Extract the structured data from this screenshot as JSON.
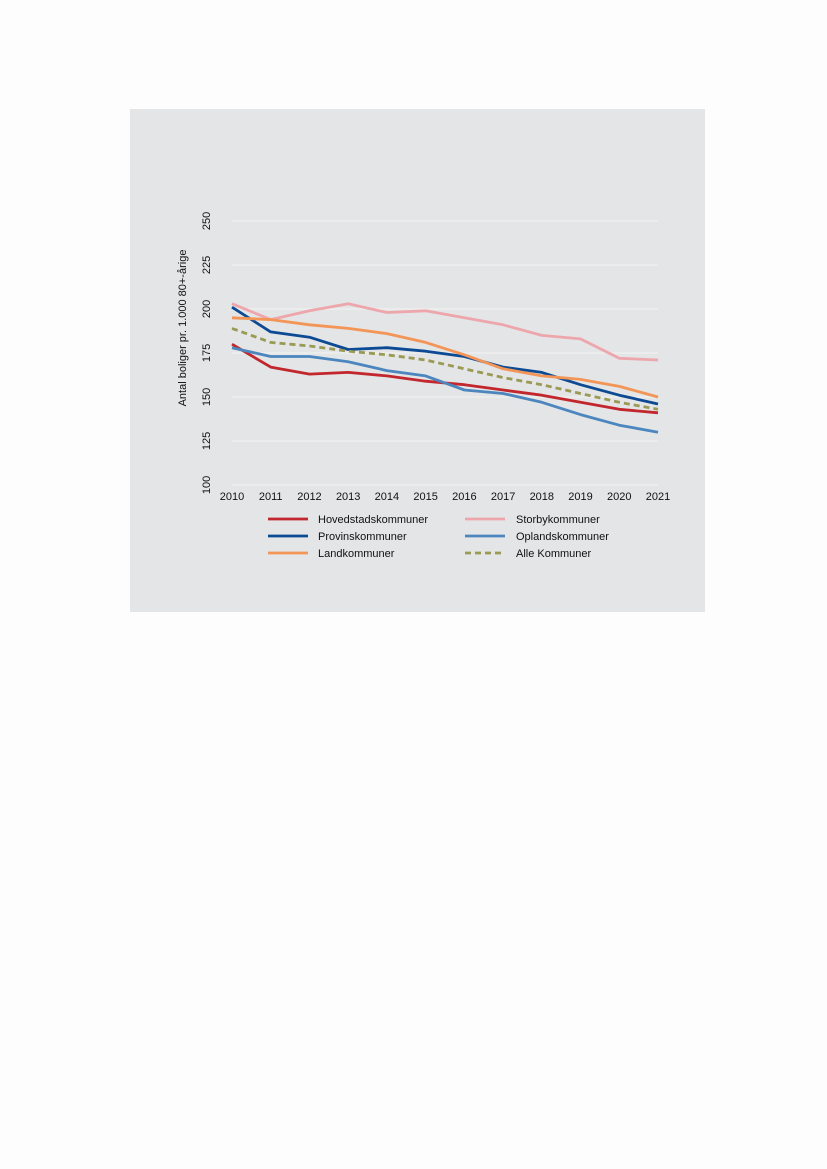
{
  "chart_data": {
    "type": "line",
    "title": "",
    "xlabel": "",
    "ylabel": "Antal boliger pr. 1.000 80+-årige",
    "x": [
      "2010",
      "2011",
      "2012",
      "2013",
      "2014",
      "2015",
      "2016",
      "2017",
      "2018",
      "2019",
      "2020",
      "2021"
    ],
    "ylim": [
      100,
      250
    ],
    "yticks": [
      100,
      125,
      150,
      175,
      200,
      225,
      250
    ],
    "grid": "horizontal",
    "legend_position": "bottom",
    "series": [
      {
        "name": "Hovedstadskommuner",
        "color": "#c1272d",
        "dash": false,
        "values": [
          180,
          167,
          163,
          164,
          162,
          159,
          157,
          154,
          151,
          147,
          143,
          141
        ]
      },
      {
        "name": "Storbykommuner",
        "color": "#eda6ac",
        "dash": false,
        "values": [
          203,
          194,
          199,
          203,
          198,
          199,
          195,
          191,
          185,
          183,
          172,
          171
        ]
      },
      {
        "name": "Provinskommuner",
        "color": "#0d4a94",
        "dash": false,
        "values": [
          201,
          187,
          184,
          177,
          178,
          176,
          173,
          167,
          164,
          157,
          151,
          146
        ]
      },
      {
        "name": "Oplandskommuner",
        "color": "#4c86bf",
        "dash": false,
        "values": [
          178,
          173,
          173,
          170,
          165,
          162,
          154,
          152,
          147,
          140,
          134,
          130
        ]
      },
      {
        "name": "Landkommuner",
        "color": "#f29557",
        "dash": false,
        "values": [
          195,
          194,
          191,
          189,
          186,
          181,
          174,
          166,
          162,
          160,
          156,
          150
        ]
      },
      {
        "name": "Alle Kommuner",
        "color": "#9a9a55",
        "dash": true,
        "values": [
          189,
          181,
          179,
          176,
          174,
          171,
          166,
          161,
          157,
          152,
          147,
          143
        ]
      }
    ]
  }
}
